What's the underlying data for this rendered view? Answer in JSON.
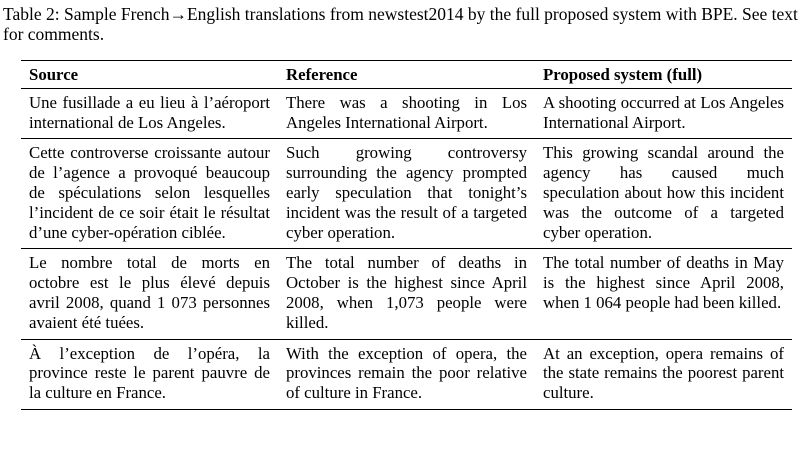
{
  "caption": "Table 2: Sample French→English translations from newstest2014 by the full proposed system with BPE. See text for comments.",
  "table": {
    "headers": [
      "Source",
      "Reference",
      "Proposed system (full)"
    ],
    "rows": [
      {
        "source": "Une fusillade a eu lieu à l’aéroport international de Los Angeles.",
        "reference": "There was a shooting in Los Angeles International Airport.",
        "proposed": "A shooting occurred at Los Angeles International Airport."
      },
      {
        "source": "Cette controverse croissante autour de l’agence a provoqué beaucoup de spéculations selon lesquelles l’incident de ce soir était le résultat d’une cyber-opération ciblée.",
        "reference": "Such growing controversy surrounding the agency prompted early speculation that tonight’s incident was the result of a targeted cyber operation.",
        "proposed": "This growing scandal around the agency has caused much speculation about how this incident was the outcome of a targeted cyber operation."
      },
      {
        "source": "Le nombre total de morts en octobre est le plus élevé depuis avril 2008, quand 1 073 personnes avaient été tuées.",
        "reference": "The total number of deaths in October is the highest since April 2008, when 1,073 people were killed.",
        "proposed": "The total number of deaths in May is the highest since April 2008, when 1 064 people had been killed."
      },
      {
        "source": "À l’exception de l’opéra, la province reste le parent pauvre de la culture en France.",
        "reference": "With the exception of opera, the provinces remain the poor relative of culture in France.",
        "proposed": "At an exception, opera remains of the state remains the poorest parent culture."
      }
    ]
  }
}
